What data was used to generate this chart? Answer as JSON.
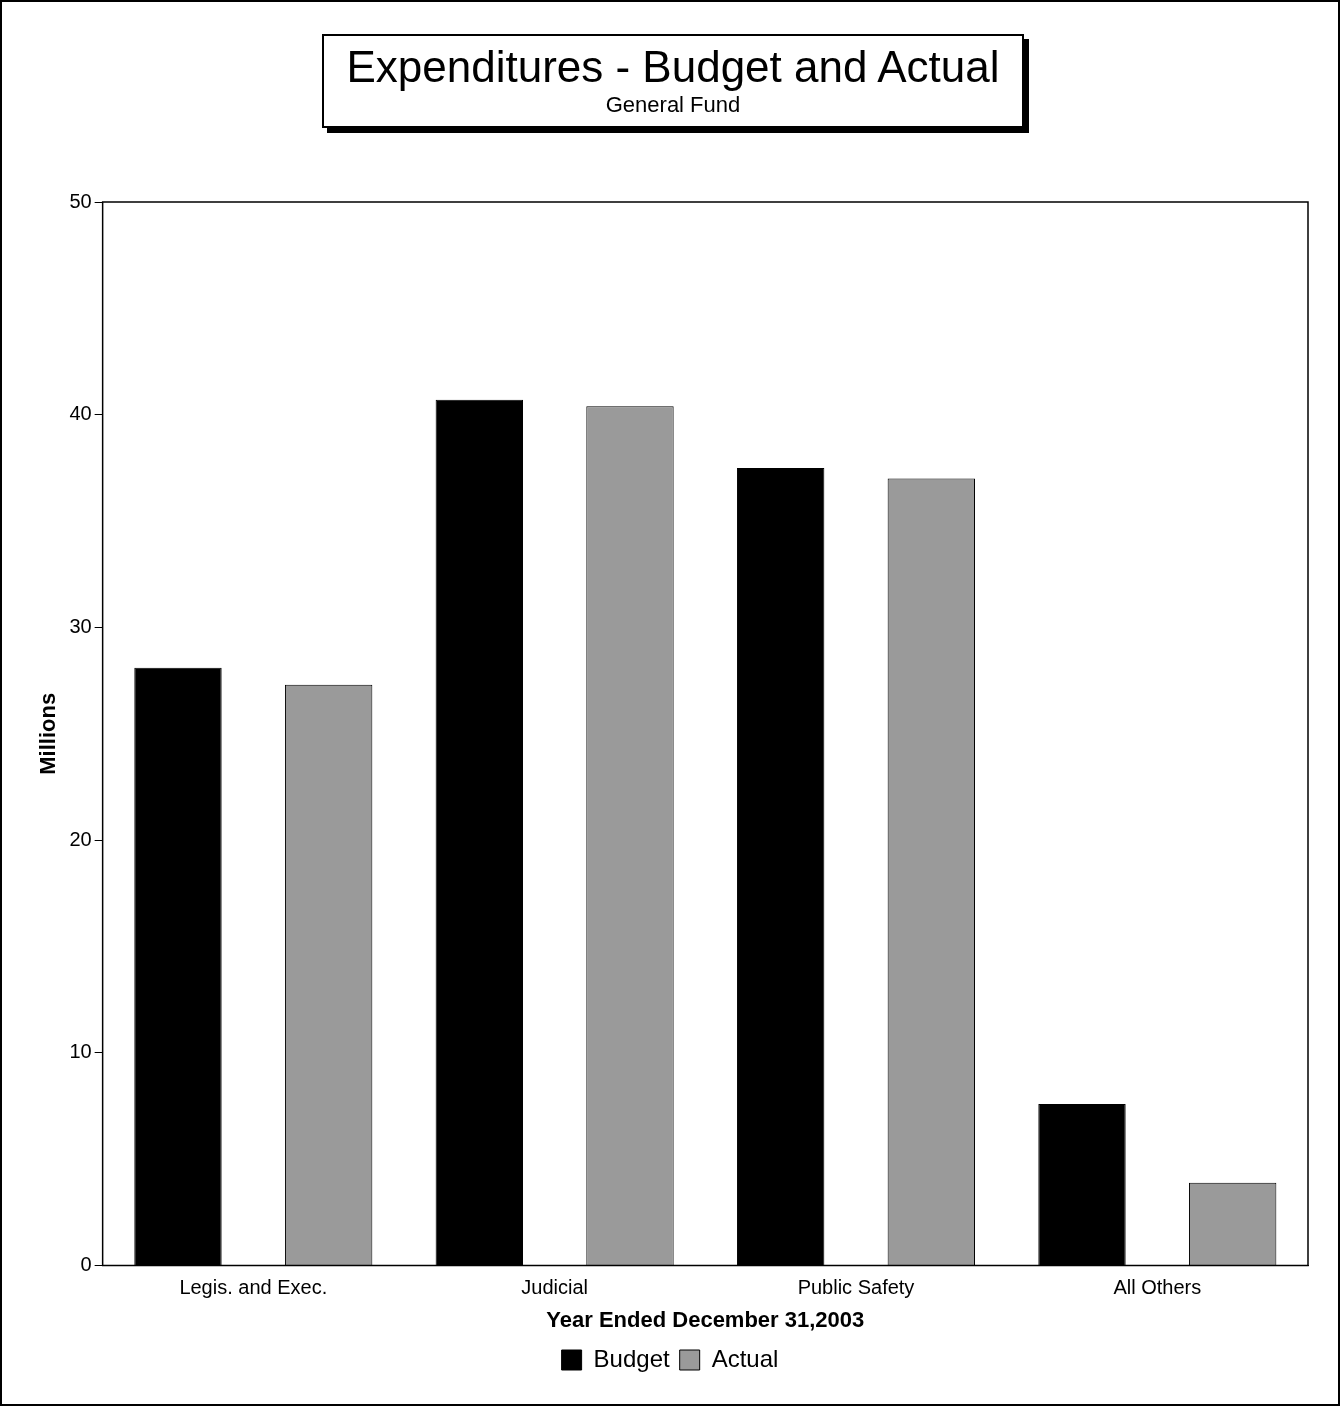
{
  "chart_data": {
    "type": "bar",
    "title": "Expenditures - Budget and Actual",
    "subtitle": "General Fund",
    "xlabel": "Year Ended December 31,2003",
    "ylabel": "Millions",
    "categories": [
      "Legis. and Exec.",
      "Judicial",
      "Public Safety",
      "All Others"
    ],
    "series": [
      {
        "name": "Budget",
        "color": "#000000",
        "values": [
          28.1,
          40.7,
          37.5,
          7.6
        ]
      },
      {
        "name": "Actual",
        "color": "#9a9a9a",
        "values": [
          27.3,
          40.4,
          37.0,
          3.9
        ]
      }
    ],
    "ylim": [
      0,
      50
    ],
    "yticks": [
      0,
      10,
      20,
      30,
      40,
      50
    ],
    "grid": false,
    "legend": "bottom"
  }
}
